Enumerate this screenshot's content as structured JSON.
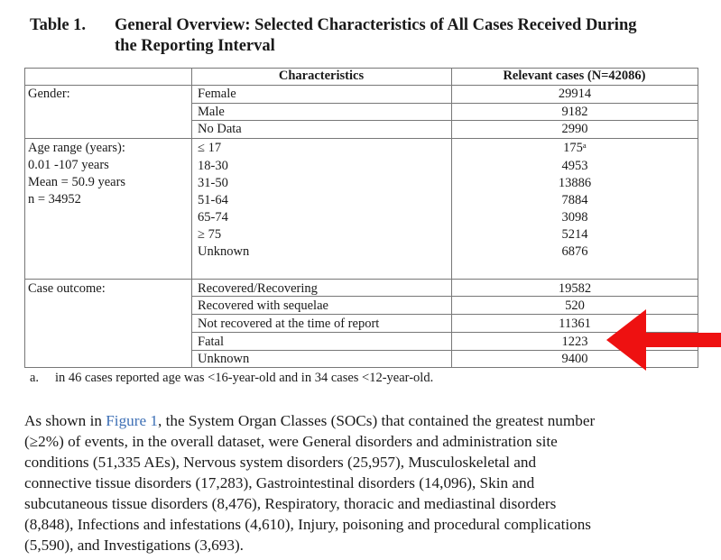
{
  "caption": {
    "label": "Table 1.",
    "title_line1": "General Overview: Selected Characteristics of All Cases Received During",
    "title_line2": "the Reporting Interval"
  },
  "table": {
    "header": {
      "characteristics": "Characteristics",
      "relevant": "Relevant cases (N=42086)"
    },
    "gender": {
      "label": "Gender:",
      "rows": [
        {
          "name": "Female",
          "count": "29914"
        },
        {
          "name": "Male",
          "count": "9182"
        },
        {
          "name": "No Data",
          "count": "2990"
        }
      ]
    },
    "age": {
      "label_lines": [
        "Age range (years):",
        "0.01 -107 years",
        "Mean = 50.9 years",
        "n = 34952"
      ],
      "rows": [
        {
          "name": "≤ 17",
          "count": "175ᵃ"
        },
        {
          "name": "18-30",
          "count": "4953"
        },
        {
          "name": "31-50",
          "count": "13886"
        },
        {
          "name": "51-64",
          "count": "7884"
        },
        {
          "name": "65-74",
          "count": "3098"
        },
        {
          "name": "≥ 75",
          "count": "5214"
        },
        {
          "name": "Unknown",
          "count": "6876"
        }
      ]
    },
    "outcome": {
      "label": "Case outcome:",
      "rows": [
        {
          "name": "Recovered/Recovering",
          "count": "19582"
        },
        {
          "name": "Recovered with sequelae",
          "count": "520"
        },
        {
          "name": "Not recovered at the time of report",
          "count": "11361"
        },
        {
          "name": "Fatal",
          "count": "1223"
        },
        {
          "name": "Unknown",
          "count": "9400"
        }
      ]
    }
  },
  "footnote": {
    "mark": "a.",
    "text": "in 46 cases reported age was <16-year-old and in 34 cases <12-year-old."
  },
  "body": {
    "l1a": "As shown in ",
    "link": "Figure 1",
    "l1b": ", the System Organ Classes (SOCs) that contained the greatest number",
    "l2": "(≥2%) of events, in the overall dataset, were General disorders and administration site",
    "l3": "conditions (51,335 AEs), Nervous system disorders (25,957), Musculoskeletal and",
    "l4": "connective tissue disorders (17,283), Gastrointestinal disorders (14,096), Skin and",
    "l5": "subcutaneous tissue disorders (8,476), Respiratory, thoracic and mediastinal disorders",
    "l6": "(8,848), Infections and infestations (4,610), Injury, poisoning and procedural complications",
    "l7": "(5,590), and Investigations (3,693)."
  },
  "colors": {
    "arrow": "#ee1111",
    "link": "#3d6fb5"
  },
  "icons": {
    "annotation": "red-arrow-icon"
  }
}
